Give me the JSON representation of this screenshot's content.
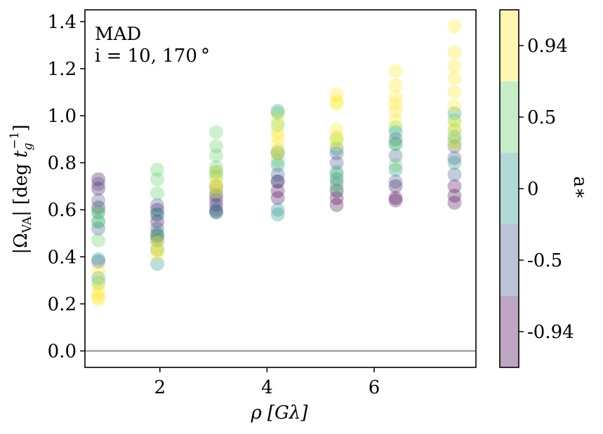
{
  "chart_data": {
    "type": "scatter",
    "annotation_lines": [
      "MAD",
      "i = 10, 170 °"
    ],
    "xlabel": "ρ  [Gλ]",
    "ylabel_parts": {
      "abs_left": "|",
      "omega": "Ω",
      "omega_sub": "VA",
      "abs_right": "|",
      "unit_open": "[deg ",
      "t": "t",
      "t_sub": "g",
      "t_sup": "−1",
      "unit_close": "]"
    },
    "xlim": [
      0.6,
      7.9
    ],
    "ylim": [
      -0.07,
      1.45
    ],
    "xticks": [
      {
        "v": 2,
        "label": "2"
      },
      {
        "v": 4,
        "label": "4"
      },
      {
        "v": 6,
        "label": "6"
      }
    ],
    "yticks": [
      {
        "v": 0.0,
        "label": "0.0"
      },
      {
        "v": 0.2,
        "label": "0.2"
      },
      {
        "v": 0.4,
        "label": "0.4"
      },
      {
        "v": 0.6,
        "label": "0.6"
      },
      {
        "v": 0.8,
        "label": "0.8"
      },
      {
        "v": 1.0,
        "label": "1.0"
      },
      {
        "v": 1.2,
        "label": "1.2"
      },
      {
        "v": 1.4,
        "label": "1.4"
      }
    ],
    "zero_line": 0.0,
    "colorbar": {
      "label": "a∗",
      "bands": [
        {
          "label": "0.94",
          "color": "#fde725"
        },
        {
          "label": "0.5",
          "color": "#5ec962"
        },
        {
          "label": "0",
          "color": "#21918c"
        },
        {
          "label": "-0.5",
          "color": "#3b528b"
        },
        {
          "label": "-0.94",
          "color": "#440154"
        }
      ]
    },
    "series": [
      {
        "name": "a=-0.94",
        "color": "#440154",
        "points": [
          [
            0.85,
            0.73
          ],
          [
            0.85,
            0.69
          ],
          [
            0.85,
            0.61
          ],
          [
            1.95,
            0.6
          ],
          [
            1.95,
            0.55
          ],
          [
            1.95,
            0.49
          ],
          [
            3.05,
            0.66
          ],
          [
            3.05,
            0.62
          ],
          [
            3.05,
            0.59
          ],
          [
            4.2,
            0.72
          ],
          [
            4.2,
            0.68
          ],
          [
            4.2,
            0.65
          ],
          [
            5.3,
            0.68
          ],
          [
            5.3,
            0.65
          ],
          [
            5.3,
            0.62
          ],
          [
            6.4,
            0.7
          ],
          [
            6.4,
            0.65
          ],
          [
            6.4,
            0.64
          ],
          [
            7.5,
            0.7
          ],
          [
            7.5,
            0.66
          ],
          [
            7.5,
            0.63
          ]
        ]
      },
      {
        "name": "a=-0.5",
        "color": "#3b528b",
        "points": [
          [
            0.85,
            0.71
          ],
          [
            0.85,
            0.64
          ],
          [
            0.85,
            0.52
          ],
          [
            0.85,
            0.38
          ],
          [
            1.95,
            0.62
          ],
          [
            1.95,
            0.58
          ],
          [
            1.95,
            0.52
          ],
          [
            1.95,
            0.47
          ],
          [
            3.05,
            0.7
          ],
          [
            3.05,
            0.64
          ],
          [
            3.05,
            0.6
          ],
          [
            4.2,
            0.84
          ],
          [
            4.2,
            0.75
          ],
          [
            4.2,
            0.72
          ],
          [
            5.3,
            0.84
          ],
          [
            5.3,
            0.8
          ],
          [
            5.3,
            0.73
          ],
          [
            6.4,
            0.9
          ],
          [
            6.4,
            0.83
          ],
          [
            6.4,
            0.72
          ],
          [
            7.5,
            0.87
          ],
          [
            7.5,
            0.82
          ],
          [
            7.5,
            0.75
          ]
        ]
      },
      {
        "name": "a=0",
        "color": "#21918c",
        "points": [
          [
            0.85,
            0.59
          ],
          [
            0.85,
            0.55
          ],
          [
            0.85,
            0.39
          ],
          [
            0.85,
            0.31
          ],
          [
            1.95,
            0.58
          ],
          [
            1.95,
            0.5
          ],
          [
            1.95,
            0.43
          ],
          [
            1.95,
            0.37
          ],
          [
            3.05,
            0.76
          ],
          [
            3.05,
            0.68
          ],
          [
            3.05,
            0.59
          ],
          [
            4.2,
            1.02
          ],
          [
            4.2,
            0.79
          ],
          [
            4.2,
            0.6
          ],
          [
            4.2,
            0.58
          ],
          [
            5.3,
            0.86
          ],
          [
            5.3,
            0.76
          ],
          [
            5.3,
            0.71
          ],
          [
            6.4,
            0.93
          ],
          [
            6.4,
            0.88
          ],
          [
            6.4,
            0.77
          ],
          [
            7.5,
            1.01
          ],
          [
            7.5,
            0.91
          ],
          [
            7.5,
            0.8
          ]
        ]
      },
      {
        "name": "a=0.5",
        "color": "#5ec962",
        "points": [
          [
            0.85,
            0.59
          ],
          [
            0.85,
            0.55
          ],
          [
            0.85,
            0.47
          ],
          [
            0.85,
            0.29
          ],
          [
            1.95,
            0.77
          ],
          [
            1.95,
            0.73
          ],
          [
            1.95,
            0.67
          ],
          [
            1.95,
            0.48
          ],
          [
            3.05,
            0.93
          ],
          [
            3.05,
            0.87
          ],
          [
            3.05,
            0.83
          ],
          [
            3.05,
            0.78
          ],
          [
            3.05,
            0.74
          ],
          [
            4.2,
            1.01
          ],
          [
            4.2,
            0.96
          ],
          [
            4.2,
            0.85
          ],
          [
            4.2,
            0.81
          ],
          [
            5.3,
            0.9
          ],
          [
            5.3,
            0.75
          ],
          [
            5.3,
            0.69
          ],
          [
            6.4,
            0.95
          ],
          [
            6.4,
            0.88
          ],
          [
            6.4,
            0.79
          ],
          [
            7.5,
            0.98
          ],
          [
            7.5,
            0.94
          ],
          [
            7.5,
            0.89
          ]
        ]
      },
      {
        "name": "a=0.94",
        "color": "#fde725",
        "points": [
          [
            0.85,
            0.34
          ],
          [
            0.85,
            0.28
          ],
          [
            0.85,
            0.25
          ],
          [
            0.85,
            0.23
          ],
          [
            0.85,
            0.22
          ],
          [
            1.95,
            0.46
          ],
          [
            1.95,
            0.43
          ],
          [
            1.95,
            0.41
          ],
          [
            3.05,
            0.76
          ],
          [
            3.05,
            0.72
          ],
          [
            3.05,
            0.7
          ],
          [
            3.05,
            0.68
          ],
          [
            4.2,
            0.98
          ],
          [
            4.2,
            0.93
          ],
          [
            4.2,
            0.91
          ],
          [
            4.2,
            0.88
          ],
          [
            4.2,
            0.84
          ],
          [
            5.3,
            1.09
          ],
          [
            5.3,
            1.06
          ],
          [
            5.3,
            1.05
          ],
          [
            5.3,
            0.94
          ],
          [
            5.3,
            0.91
          ],
          [
            5.3,
            0.88
          ],
          [
            6.4,
            1.19
          ],
          [
            6.4,
            1.13
          ],
          [
            6.4,
            1.08
          ],
          [
            6.4,
            1.05
          ],
          [
            6.4,
            1.02
          ],
          [
            6.4,
            0.98
          ],
          [
            7.5,
            1.38
          ],
          [
            7.5,
            1.27
          ],
          [
            7.5,
            1.21
          ],
          [
            7.5,
            1.16
          ],
          [
            7.5,
            1.1
          ],
          [
            7.5,
            1.04
          ],
          [
            7.5,
            0.97
          ],
          [
            7.5,
            0.93
          ],
          [
            7.5,
            0.88
          ]
        ]
      }
    ]
  }
}
